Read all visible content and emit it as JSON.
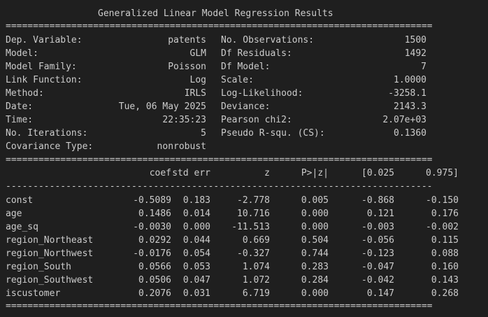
{
  "title": "Generalized Linear Model Regression Results",
  "separators": {
    "double": "==============================================================================",
    "single": "------------------------------------------------------------------------------"
  },
  "summary": {
    "left": [
      {
        "label": "Dep. Variable:",
        "value": "patents"
      },
      {
        "label": "Model:",
        "value": "GLM"
      },
      {
        "label": "Model Family:",
        "value": "Poisson"
      },
      {
        "label": "Link Function:",
        "value": "Log"
      },
      {
        "label": "Method:",
        "value": "IRLS"
      },
      {
        "label": "Date:",
        "value": "Tue, 06 May 2025"
      },
      {
        "label": "Time:",
        "value": "22:35:23"
      },
      {
        "label": "No. Iterations:",
        "value": "5"
      },
      {
        "label": "Covariance Type:",
        "value": "nonrobust"
      }
    ],
    "right": [
      {
        "label": "No. Observations:",
        "value": "1500"
      },
      {
        "label": "Df Residuals:",
        "value": "1492"
      },
      {
        "label": "Df Model:",
        "value": "7"
      },
      {
        "label": "Scale:",
        "value": "1.0000"
      },
      {
        "label": "Log-Likelihood:",
        "value": "-3258.1"
      },
      {
        "label": "Deviance:",
        "value": "2143.3"
      },
      {
        "label": "Pearson chi2:",
        "value": "2.07e+03"
      },
      {
        "label": "Pseudo R-squ. (CS):",
        "value": "0.1360"
      }
    ]
  },
  "coef_table": {
    "headers": [
      "coef",
      "std err",
      "z",
      "P>|z|",
      "[0.025",
      "0.975]"
    ],
    "rows": [
      {
        "name": "const",
        "cells": [
          "-0.5089",
          "0.183",
          "-2.778",
          "0.005",
          "-0.868",
          "-0.150"
        ]
      },
      {
        "name": "age",
        "cells": [
          "0.1486",
          "0.014",
          "10.716",
          "0.000",
          "0.121",
          "0.176"
        ]
      },
      {
        "name": "age_sq",
        "cells": [
          "-0.0030",
          "0.000",
          "-11.513",
          "0.000",
          "-0.003",
          "-0.002"
        ]
      },
      {
        "name": "region_Northeast",
        "cells": [
          "0.0292",
          "0.044",
          "0.669",
          "0.504",
          "-0.056",
          "0.115"
        ]
      },
      {
        "name": "region_Northwest",
        "cells": [
          "-0.0176",
          "0.054",
          "-0.327",
          "0.744",
          "-0.123",
          "0.088"
        ]
      },
      {
        "name": "region_South",
        "cells": [
          "0.0566",
          "0.053",
          "1.074",
          "0.283",
          "-0.047",
          "0.160"
        ]
      },
      {
        "name": "region_Southwest",
        "cells": [
          "0.0506",
          "0.047",
          "1.072",
          "0.284",
          "-0.042",
          "0.143"
        ]
      },
      {
        "name": "iscustomer",
        "cells": [
          "0.2076",
          "0.031",
          "6.719",
          "0.000",
          "0.147",
          "0.268"
        ]
      }
    ]
  }
}
